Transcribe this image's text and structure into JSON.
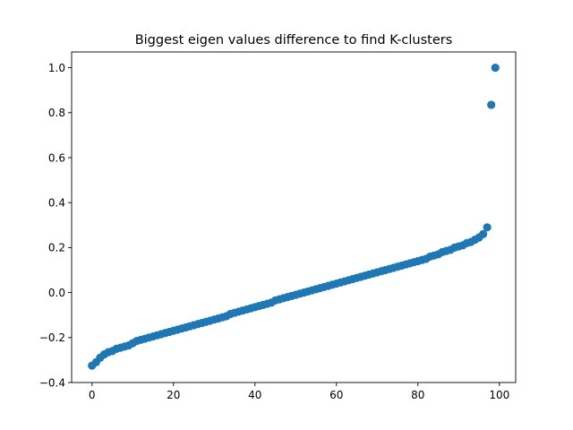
{
  "chart_data": {
    "type": "scatter",
    "title": "Biggest eigen values difference to find K-clusters",
    "xlabel": "",
    "ylabel": "",
    "xlim": [
      -5,
      104
    ],
    "ylim": [
      -0.4,
      1.07
    ],
    "x_ticks": [
      0,
      20,
      40,
      60,
      80,
      100
    ],
    "y_ticks": [
      -0.4,
      -0.2,
      0.0,
      0.2,
      0.4,
      0.6,
      0.8,
      1.0
    ],
    "x_tick_labels": [
      "0",
      "20",
      "40",
      "60",
      "80",
      "100"
    ],
    "y_tick_labels": [
      "−0.4",
      "−0.2",
      "0.0",
      "0.2",
      "0.4",
      "0.6",
      "0.8",
      "1.0"
    ],
    "grid": false,
    "marker_color": "#1f77b4",
    "series": [
      {
        "x": [
          0,
          1,
          2,
          3,
          4,
          5,
          6,
          7,
          8,
          9,
          10,
          11,
          12,
          13,
          14,
          15,
          16,
          17,
          18,
          19,
          20,
          21,
          22,
          23,
          24,
          25,
          26,
          27,
          28,
          29,
          30,
          31,
          32,
          33,
          34,
          35,
          36,
          37,
          38,
          39,
          40,
          41,
          42,
          43,
          44,
          45,
          46,
          47,
          48,
          49,
          50,
          51,
          52,
          53,
          54,
          55,
          56,
          57,
          58,
          59,
          60,
          61,
          62,
          63,
          64,
          65,
          66,
          67,
          68,
          69,
          70,
          71,
          72,
          73,
          74,
          75,
          76,
          77,
          78,
          79,
          80,
          81,
          82,
          83,
          84,
          85,
          86,
          87,
          88,
          89,
          90,
          91,
          92,
          93,
          94,
          95,
          96,
          97,
          98,
          99
        ],
        "y": [
          -0.325,
          -0.31,
          -0.29,
          -0.275,
          -0.265,
          -0.26,
          -0.25,
          -0.245,
          -0.24,
          -0.235,
          -0.225,
          -0.215,
          -0.21,
          -0.205,
          -0.2,
          -0.195,
          -0.19,
          -0.185,
          -0.18,
          -0.175,
          -0.17,
          -0.165,
          -0.16,
          -0.155,
          -0.15,
          -0.145,
          -0.14,
          -0.135,
          -0.13,
          -0.125,
          -0.12,
          -0.115,
          -0.11,
          -0.105,
          -0.095,
          -0.09,
          -0.085,
          -0.08,
          -0.075,
          -0.07,
          -0.065,
          -0.06,
          -0.055,
          -0.05,
          -0.045,
          -0.035,
          -0.03,
          -0.025,
          -0.02,
          -0.015,
          -0.01,
          -0.005,
          0.0,
          0.005,
          0.01,
          0.015,
          0.02,
          0.025,
          0.03,
          0.035,
          0.04,
          0.045,
          0.05,
          0.055,
          0.06,
          0.065,
          0.07,
          0.075,
          0.08,
          0.085,
          0.09,
          0.095,
          0.1,
          0.105,
          0.11,
          0.115,
          0.12,
          0.125,
          0.13,
          0.135,
          0.14,
          0.145,
          0.15,
          0.16,
          0.165,
          0.17,
          0.18,
          0.185,
          0.19,
          0.2,
          0.205,
          0.21,
          0.22,
          0.225,
          0.235,
          0.245,
          0.26,
          0.29,
          0.835,
          1.0
        ]
      }
    ]
  }
}
